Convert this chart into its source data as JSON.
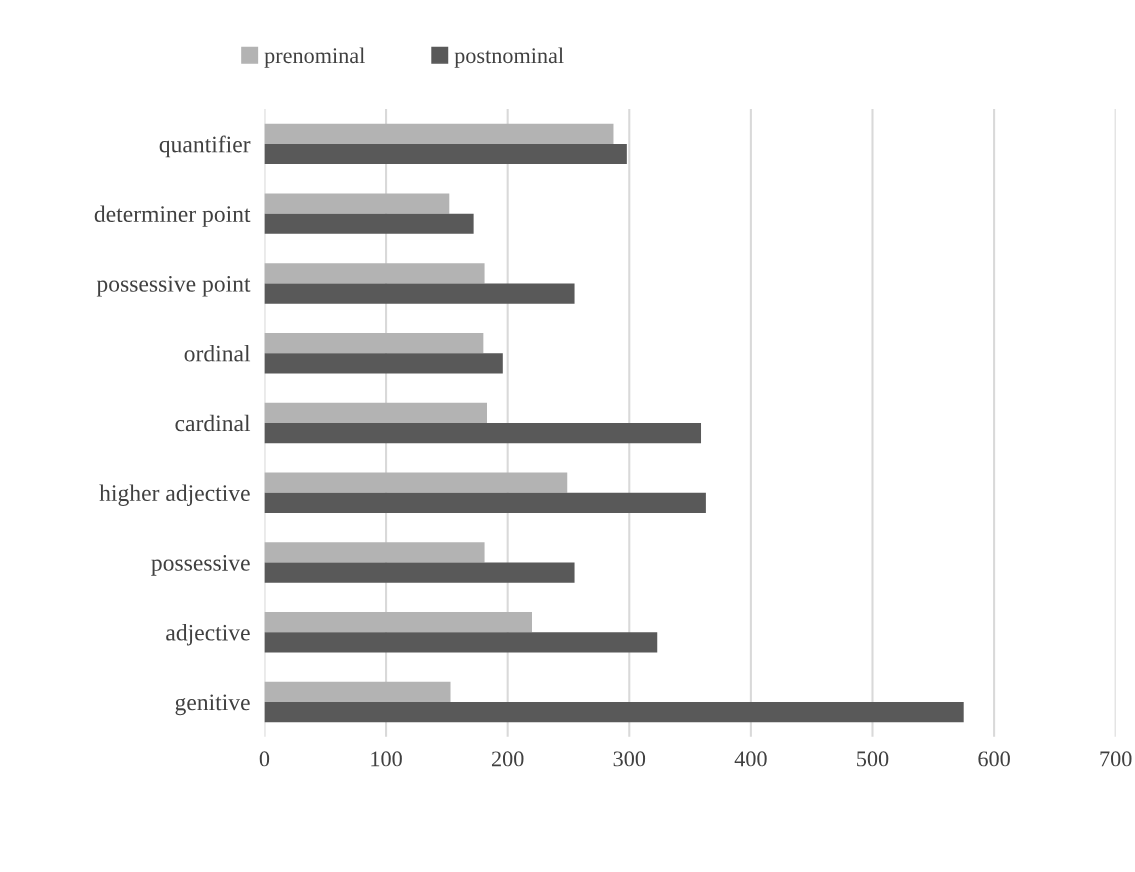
{
  "chart_data": {
    "type": "bar",
    "orientation": "horizontal",
    "categories": [
      "quantifier",
      "determiner point",
      "possessive point",
      "ordinal",
      "cardinal",
      "higher adjective",
      "possessive",
      "adjective",
      "genitive"
    ],
    "series": [
      {
        "name": "prenominal",
        "color": "#b3b3b3",
        "values": [
          287,
          152,
          181,
          180,
          183,
          249,
          181,
          220,
          153
        ]
      },
      {
        "name": "postnominal",
        "color": "#595959",
        "values": [
          298,
          172,
          255,
          196,
          359,
          363,
          255,
          323,
          575
        ]
      }
    ],
    "xlim": [
      0,
      700
    ],
    "xticks": [
      0,
      100,
      200,
      300,
      400,
      500,
      600,
      700
    ],
    "grid": "x",
    "legend": "top"
  }
}
